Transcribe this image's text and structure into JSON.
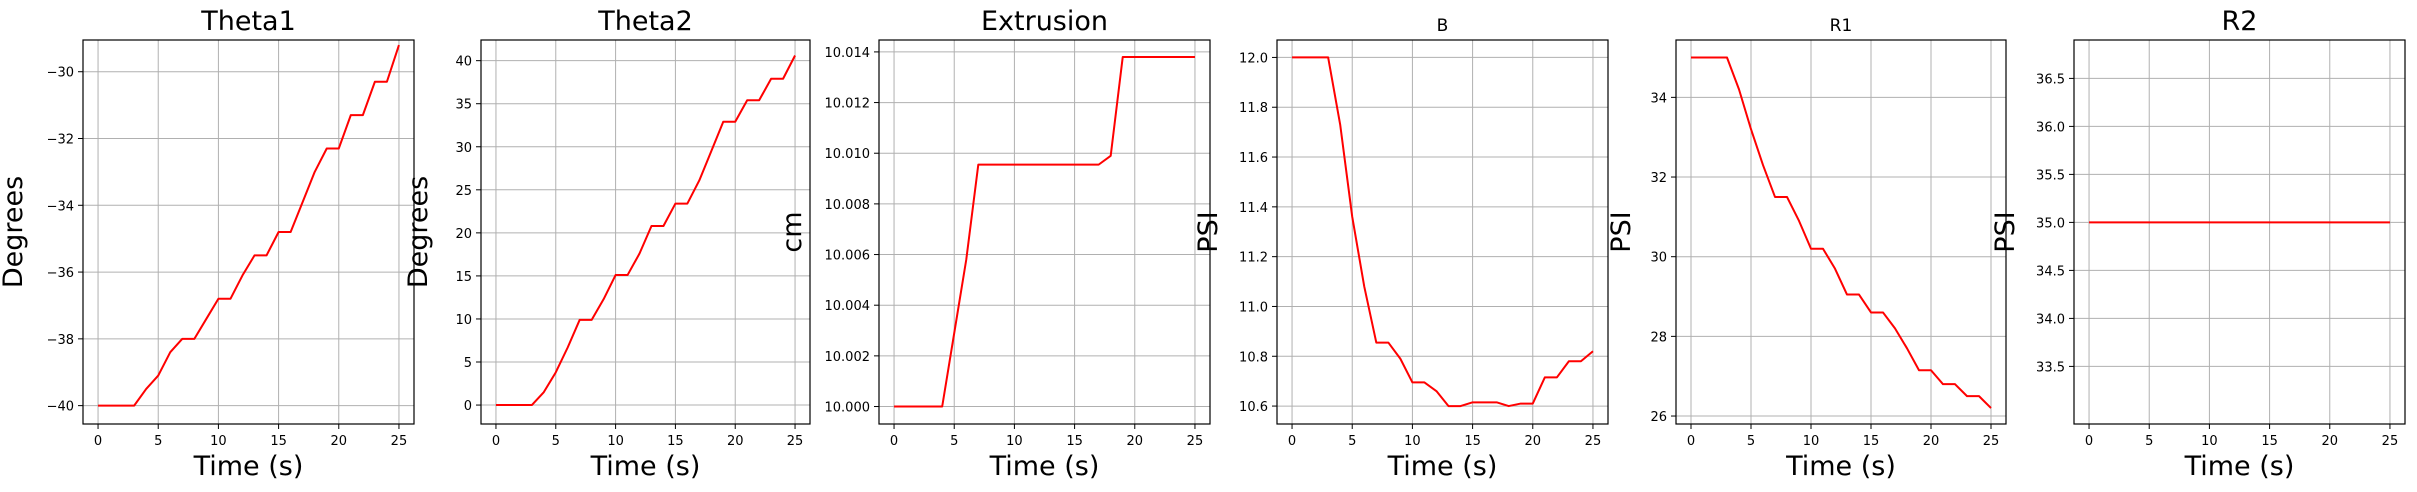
{
  "chart_data": [
    {
      "type": "line",
      "title": "Theta1",
      "title_size": "large",
      "xlabel": "Time (s)",
      "ylabel": "Degrees",
      "xlim": [
        -1.25,
        26.25
      ],
      "ylim": [
        -40.55,
        -29.05
      ],
      "xticks": [
        0,
        5,
        10,
        15,
        20,
        25
      ],
      "yticks": [
        -40,
        -38,
        -36,
        -34,
        -32,
        -30
      ],
      "ytick_labels": [
        "−40",
        "−38",
        "−36",
        "−34",
        "−32",
        "−30"
      ],
      "grid": true,
      "color": "#ff0000",
      "x": [
        0,
        1,
        2,
        3,
        4,
        5,
        6,
        7,
        8,
        9,
        10,
        11,
        12,
        13,
        14,
        15,
        16,
        17,
        18,
        19,
        20,
        21,
        22,
        23,
        24,
        25
      ],
      "y": [
        -40,
        -40,
        -40,
        -40,
        -39.5,
        -39.1,
        -38.4,
        -38,
        -38,
        -37.4,
        -36.8,
        -36.8,
        -36.1,
        -35.5,
        -35.5,
        -34.8,
        -34.8,
        -33.9,
        -33,
        -32.3,
        -32.3,
        -31.3,
        -31.3,
        -30.3,
        -30.3,
        -29.2
      ]
    },
    {
      "type": "line",
      "title": "Theta2",
      "title_size": "large",
      "xlabel": "Time (s)",
      "ylabel": "Degrees",
      "xlim": [
        -1.25,
        26.25
      ],
      "ylim": [
        -2.2,
        42.4
      ],
      "xticks": [
        0,
        5,
        10,
        15,
        20,
        25
      ],
      "yticks": [
        0,
        5,
        10,
        15,
        20,
        25,
        30,
        35,
        40
      ],
      "ytick_labels": [
        "0",
        "5",
        "10",
        "15",
        "20",
        "25",
        "30",
        "35",
        "40"
      ],
      "grid": true,
      "color": "#ff0000",
      "x": [
        0,
        1,
        2,
        3,
        4,
        5,
        6,
        7,
        8,
        9,
        10,
        11,
        12,
        13,
        14,
        15,
        16,
        17,
        18,
        19,
        20,
        21,
        22,
        23,
        24,
        25
      ],
      "y": [
        0,
        0,
        0,
        0,
        1.5,
        3.8,
        6.7,
        9.9,
        9.9,
        12.3,
        15.1,
        15.1,
        17.6,
        20.8,
        20.8,
        23.4,
        23.4,
        26.1,
        29.5,
        32.9,
        32.9,
        35.4,
        35.4,
        37.9,
        37.9,
        40.6
      ]
    },
    {
      "type": "line",
      "title": "Extrusion",
      "title_size": "large",
      "xlabel": "Time (s)",
      "ylabel": "cm",
      "xlim": [
        -1.25,
        26.25
      ],
      "ylim": [
        9.99931,
        10.01447
      ],
      "xticks": [
        0,
        5,
        10,
        15,
        20,
        25
      ],
      "yticks": [
        10.0,
        10.002,
        10.004,
        10.006,
        10.008,
        10.01,
        10.012,
        10.014
      ],
      "ytick_labels": [
        "10.000",
        "10.002",
        "10.004",
        "10.006",
        "10.008",
        "10.010",
        "10.012",
        "10.014"
      ],
      "grid": true,
      "color": "#ff0000",
      "x": [
        0,
        1,
        2,
        3,
        4,
        5,
        6,
        7,
        8,
        9,
        10,
        11,
        12,
        13,
        14,
        15,
        16,
        17,
        18,
        19,
        20,
        21,
        22,
        23,
        24,
        25
      ],
      "y": [
        10.0,
        10.0,
        10.0,
        10.0,
        10.0,
        10.0029,
        10.0058,
        10.00955,
        10.00955,
        10.00955,
        10.00955,
        10.00955,
        10.00955,
        10.00955,
        10.00955,
        10.00955,
        10.00955,
        10.00955,
        10.0099,
        10.0138,
        10.0138,
        10.0138,
        10.0138,
        10.0138,
        10.0138,
        10.0138
      ]
    },
    {
      "type": "line",
      "title": "B",
      "title_size": "small",
      "xlabel": "Time (s)",
      "ylabel": "PSI",
      "xlim": [
        -1.25,
        26.25
      ],
      "ylim": [
        10.528,
        12.07
      ],
      "xticks": [
        0,
        5,
        10,
        15,
        20,
        25
      ],
      "yticks": [
        10.6,
        10.8,
        11.0,
        11.2,
        11.4,
        11.6,
        11.8,
        12.0
      ],
      "ytick_labels": [
        "10.6",
        "10.8",
        "11.0",
        "11.2",
        "11.4",
        "11.6",
        "11.8",
        "12.0"
      ],
      "grid": true,
      "color": "#ff0000",
      "x": [
        0,
        1,
        2,
        3,
        4,
        5,
        6,
        7,
        8,
        9,
        10,
        11,
        12,
        13,
        14,
        15,
        16,
        17,
        18,
        19,
        20,
        21,
        22,
        23,
        24,
        25
      ],
      "y": [
        12.0,
        12.0,
        12.0,
        12.0,
        11.73,
        11.36,
        11.08,
        10.855,
        10.855,
        10.79,
        10.695,
        10.695,
        10.66,
        10.6,
        10.6,
        10.615,
        10.615,
        10.615,
        10.6,
        10.61,
        10.61,
        10.715,
        10.715,
        10.78,
        10.78,
        10.82
      ]
    },
    {
      "type": "line",
      "title": "R1",
      "title_size": "small",
      "xlabel": "Time (s)",
      "ylabel": "PSI",
      "xlim": [
        -1.25,
        26.25
      ],
      "ylim": [
        25.8,
        35.44
      ],
      "xticks": [
        0,
        5,
        10,
        15,
        20,
        25
      ],
      "yticks": [
        26,
        28,
        30,
        32,
        34
      ],
      "ytick_labels": [
        "26",
        "28",
        "30",
        "32",
        "34"
      ],
      "grid": true,
      "color": "#ff0000",
      "x": [
        0,
        1,
        2,
        3,
        4,
        5,
        6,
        7,
        8,
        9,
        10,
        11,
        12,
        13,
        14,
        15,
        16,
        17,
        18,
        19,
        20,
        21,
        22,
        23,
        24,
        25
      ],
      "y": [
        35.0,
        35.0,
        35.0,
        35.0,
        34.2,
        33.2,
        32.3,
        31.5,
        31.5,
        30.9,
        30.2,
        30.2,
        29.7,
        29.05,
        29.05,
        28.6,
        28.6,
        28.2,
        27.7,
        27.15,
        27.15,
        26.8,
        26.8,
        26.5,
        26.5,
        26.2
      ]
    },
    {
      "type": "line",
      "title": "R2",
      "title_size": "large",
      "xlabel": "Time (s)",
      "ylabel": "PSI",
      "xlim": [
        -1.25,
        26.25
      ],
      "ylim": [
        32.9,
        36.9
      ],
      "xticks": [
        0,
        5,
        10,
        15,
        20,
        25
      ],
      "yticks": [
        33.5,
        34.0,
        34.5,
        35.0,
        35.5,
        36.0,
        36.5
      ],
      "ytick_labels": [
        "33.5",
        "34.0",
        "34.5",
        "35.0",
        "35.5",
        "36.0",
        "36.5"
      ],
      "grid": true,
      "color": "#ff0000",
      "x": [
        0,
        1,
        2,
        3,
        4,
        5,
        6,
        7,
        8,
        9,
        10,
        11,
        12,
        13,
        14,
        15,
        16,
        17,
        18,
        19,
        20,
        21,
        22,
        23,
        24,
        25
      ],
      "y": [
        35,
        35,
        35,
        35,
        35,
        35,
        35,
        35,
        35,
        35,
        35,
        35,
        35,
        35,
        35,
        35,
        35,
        35,
        35,
        35,
        35,
        35,
        35,
        35,
        35,
        35
      ]
    }
  ]
}
